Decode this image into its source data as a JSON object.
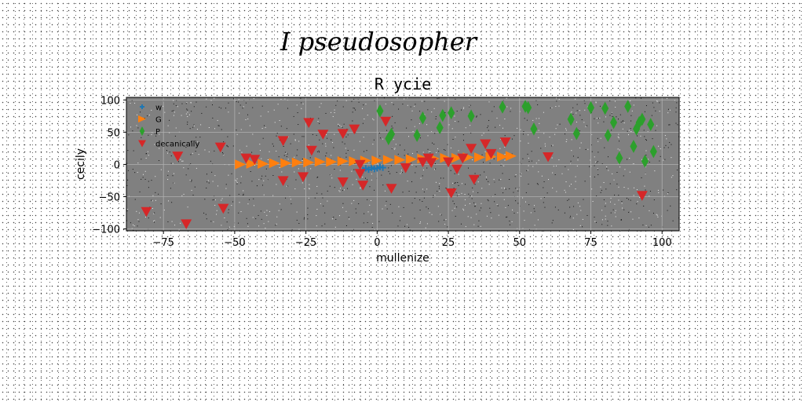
{
  "suptitle": "I pseudosopher",
  "chart_data": {
    "type": "scatter",
    "title": "R ycie",
    "xlabel": "mullenize",
    "ylabel": "cecily",
    "xlim": [
      -88,
      106
    ],
    "ylim": [
      -103,
      104
    ],
    "xticks": [
      -75,
      -50,
      -25,
      0,
      25,
      50,
      75,
      100
    ],
    "yticks": [
      -100,
      -50,
      0,
      50,
      100
    ],
    "xtick_labels": [
      "−75",
      "−50",
      "−25",
      "0",
      "25",
      "50",
      "75",
      "100"
    ],
    "ytick_labels": [
      "−100",
      "−50",
      "0",
      "50",
      "100"
    ],
    "grid": true,
    "legend_position": "upper-left",
    "background": "#808080",
    "series": [
      {
        "name": "w",
        "marker": "plus",
        "color": "#1f77b4",
        "x": [
          -5,
          -4,
          -3,
          -2,
          -1,
          0,
          1,
          2
        ],
        "y": [
          -9,
          -6,
          -8,
          -5,
          -7,
          -6,
          -4,
          -5
        ]
      },
      {
        "name": "G",
        "marker": "triangle-right",
        "color": "#ff7f0e",
        "x": [
          -48,
          -44,
          -40,
          -36,
          -32,
          -28,
          -24,
          -20,
          -16,
          -12,
          -8,
          -4,
          0,
          4,
          8,
          12,
          16,
          20,
          24,
          28,
          32,
          36,
          40,
          44,
          47
        ],
        "y": [
          0,
          1,
          1,
          2,
          2,
          3,
          3,
          4,
          4,
          5,
          5,
          6,
          6,
          7,
          7,
          8,
          9,
          9,
          10,
          10,
          11,
          11,
          12,
          12,
          13
        ]
      },
      {
        "name": "P",
        "marker": "thin-diamond",
        "color": "#2ca02c",
        "x": [
          1,
          4,
          5,
          14,
          16,
          22,
          23,
          26,
          33,
          44,
          52,
          53,
          55,
          68,
          70,
          75,
          80,
          81,
          83,
          85,
          88,
          90,
          91,
          92,
          93,
          94,
          96,
          97
        ],
        "y": [
          83,
          40,
          47,
          45,
          72,
          57,
          76,
          80,
          75,
          89,
          90,
          88,
          55,
          70,
          48,
          88,
          87,
          45,
          65,
          10,
          90,
          28,
          55,
          65,
          70,
          5,
          62,
          20
        ]
      },
      {
        "name": "decanically",
        "marker": "triangle-down",
        "color": "#d62728",
        "x": [
          -81,
          -70,
          -67,
          -55,
          -54,
          -46,
          -43,
          -33,
          -33,
          -26,
          -24,
          -23,
          -19,
          -12,
          -12,
          -8,
          -6,
          -6,
          -5,
          3,
          5,
          10,
          16,
          18,
          19,
          25,
          26,
          28,
          30,
          33,
          34,
          38,
          40,
          45,
          60,
          93
        ],
        "y": [
          -73,
          13,
          -92,
          27,
          -68,
          10,
          8,
          37,
          -25,
          -19,
          65,
          22,
          47,
          48,
          -27,
          55,
          -14,
          0,
          -32,
          67,
          -37,
          -5,
          4,
          10,
          3,
          4,
          -44,
          -7,
          10,
          25,
          -23,
          32,
          17,
          35,
          12,
          -48
        ]
      }
    ]
  }
}
